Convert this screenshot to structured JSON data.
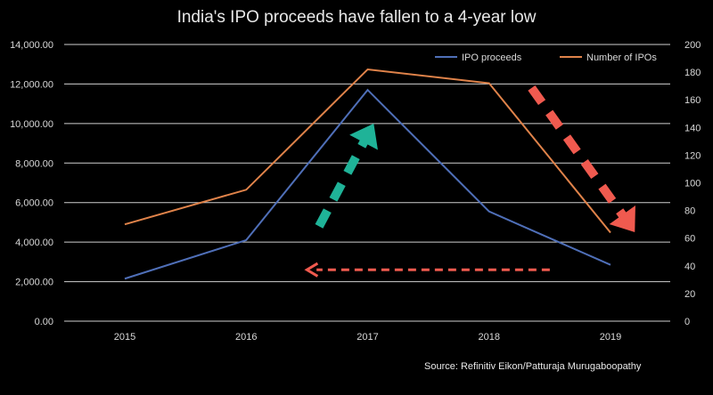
{
  "chart_data": {
    "type": "line",
    "title": "India's IPO proceeds have fallen to a 4-year low",
    "source": "Source: Refinitiv Eikon/Patturaja Murugaboopathy",
    "categories": [
      "2015",
      "2016",
      "2017",
      "2018",
      "2019"
    ],
    "y_left": {
      "min": 0,
      "max": 14000,
      "step": 2000,
      "ticks": [
        "0.00",
        "2,000.00",
        "4,000.00",
        "6,000.00",
        "8,000.00",
        "10,000.00",
        "12,000.00",
        "14,000.00"
      ]
    },
    "y_right": {
      "min": 0,
      "max": 200,
      "step": 20,
      "ticks": [
        "0",
        "20",
        "40",
        "60",
        "80",
        "100",
        "120",
        "140",
        "160",
        "180",
        "200"
      ]
    },
    "series": [
      {
        "name": "IPO proceeds",
        "axis": "left",
        "color": "#4f6fb8",
        "values": [
          2150,
          4100,
          11700,
          5550,
          2850
        ]
      },
      {
        "name": "Number of IPOs",
        "axis": "right",
        "color": "#e0834a",
        "values": [
          70,
          95,
          182,
          172,
          64
        ]
      }
    ],
    "annotations": [
      {
        "name": "up-arrow",
        "color": "#1fb398",
        "from": [
          "2016.6",
          4800
        ],
        "to": [
          "2017.05",
          10000
        ]
      },
      {
        "name": "down-arrow",
        "color": "#f05a4f",
        "from": [
          "2018.35",
          11800
        ],
        "to": [
          "2019.2",
          4500
        ]
      },
      {
        "name": "left-arrow",
        "color": "#f05a4f",
        "from": [
          "2018.5",
          2600
        ],
        "to": [
          "2016.5",
          2600
        ]
      }
    ]
  }
}
